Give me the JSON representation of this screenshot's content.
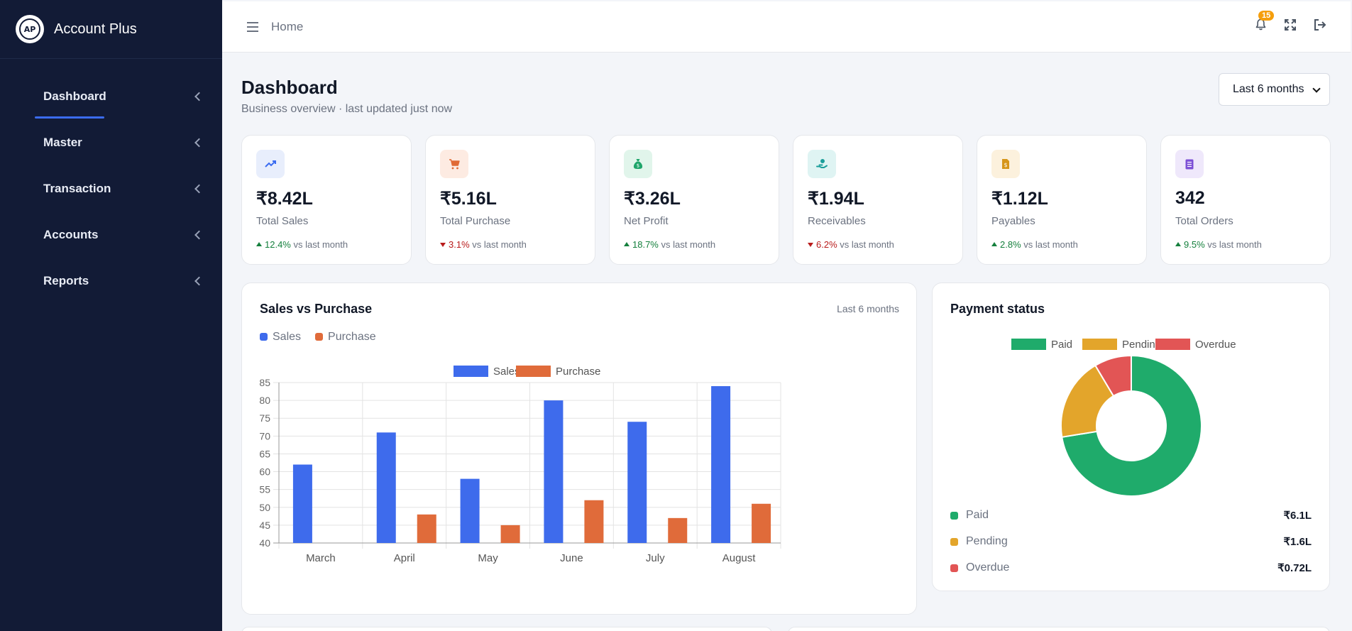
{
  "app": {
    "name": "Account Plus",
    "logo_text": "AP"
  },
  "sidebar": {
    "items": [
      {
        "label": "Dashboard"
      },
      {
        "label": "Master"
      },
      {
        "label": "Transaction"
      },
      {
        "label": "Accounts"
      },
      {
        "label": "Reports"
      }
    ]
  },
  "header": {
    "breadcrumb": "Home",
    "notification_count": "15"
  },
  "page": {
    "title": "Dashboard",
    "subtitle": "Business overview · last updated just now",
    "period": "Last 6 months"
  },
  "stats": [
    {
      "icon": "trend-up-icon",
      "value": "₹8.42L",
      "label": "Total Sales",
      "change": "12.4%",
      "direction": "up",
      "suffix": "vs last month",
      "accent": "#3b6cf0",
      "tint": "#e8eefc"
    },
    {
      "icon": "cart-icon",
      "value": "₹5.16L",
      "label": "Total Purchase",
      "change": "3.1%",
      "direction": "down",
      "suffix": "vs last month",
      "accent": "#e06a35",
      "tint": "#fdebe2"
    },
    {
      "icon": "money-bag-icon",
      "value": "₹3.26L",
      "label": "Net Profit",
      "change": "18.7%",
      "direction": "up",
      "suffix": "vs last month",
      "accent": "#1fa56a",
      "tint": "#e1f5eb"
    },
    {
      "icon": "hand-coin-icon",
      "value": "₹1.94L",
      "label": "Receivables",
      "change": "6.2%",
      "direction": "down",
      "suffix": "vs last month",
      "accent": "#1a9e9a",
      "tint": "#dff4f3"
    },
    {
      "icon": "invoice-icon",
      "value": "₹1.12L",
      "label": "Payables",
      "change": "2.8%",
      "direction": "up",
      "suffix": "vs last month",
      "accent": "#d6961a",
      "tint": "#fcf1dd"
    },
    {
      "icon": "orders-icon",
      "value": "342",
      "label": "Total Orders",
      "change": "9.5%",
      "direction": "up",
      "suffix": "vs last month",
      "accent": "#7c4fd6",
      "tint": "#efe8fb"
    }
  ],
  "sales_card": {
    "title": "Sales vs Purchase",
    "meta": "Last 6 months"
  },
  "payment_card": {
    "title": "Payment status"
  },
  "colors": {
    "sales": "#3e6bec",
    "purchase": "#e06b3a",
    "paid": "#1fab6b",
    "pending": "#e3a52b",
    "overdue": "#e25555"
  },
  "chart_data": [
    {
      "type": "bar",
      "categories": [
        "March",
        "April",
        "May",
        "June",
        "July",
        "August"
      ],
      "series": [
        {
          "name": "Sales",
          "values": [
            62,
            71,
            58,
            80,
            74,
            84
          ]
        },
        {
          "name": "Purchase",
          "values": [
            null,
            48,
            45,
            52,
            47,
            51
          ]
        }
      ],
      "ylim": [
        40,
        85
      ],
      "yticks": [
        40,
        45,
        50,
        55,
        60,
        65,
        70,
        75,
        80,
        85
      ],
      "legend": "top",
      "grid": true
    },
    {
      "type": "pie",
      "categories": [
        "Paid",
        "Pending",
        "Overdue"
      ],
      "values": [
        6.1,
        1.6,
        0.72
      ],
      "display_values": [
        "₹6.1L",
        "₹1.6L",
        "₹0.72L"
      ],
      "legend": "top"
    }
  ]
}
